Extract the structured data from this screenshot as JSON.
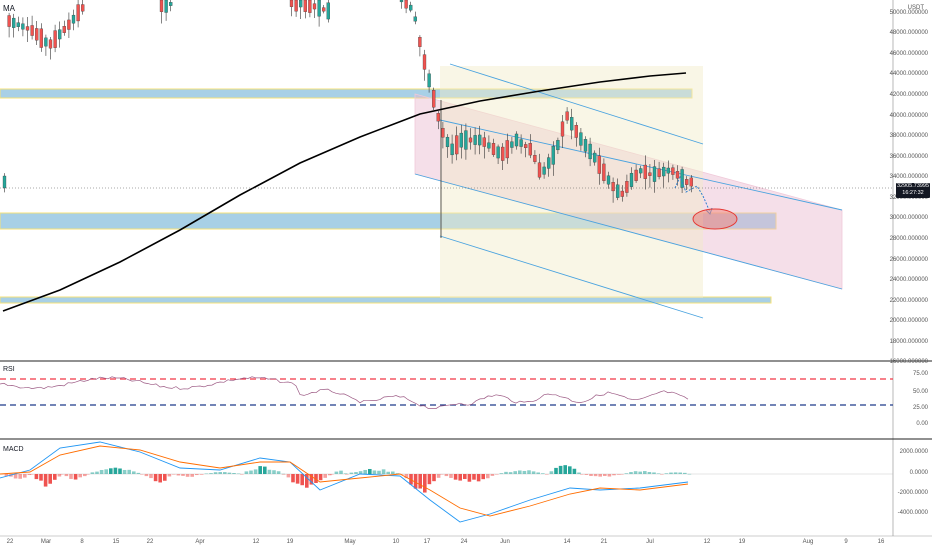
{
  "header": {
    "indicator_label": "MA",
    "unit": "USDT"
  },
  "price_scale": [
    "50000.000000",
    "48000.000000",
    "46000.000000",
    "44000.000000",
    "42000.000000",
    "40000.000000",
    "38000.000000",
    "36000.000000",
    "34000.000000",
    "32000.000000",
    "30000.000000",
    "28000.000000",
    "26000.000000",
    "24000.000000",
    "22000.000000",
    "20000.000000",
    "18000.000000",
    "16000.000000"
  ],
  "last_price": {
    "value": "32905.73995",
    "countdown": "16:27:32"
  },
  "rsi": {
    "title": "RSI",
    "scale": [
      "75.00",
      "50.00",
      "25.00",
      "0.00"
    ],
    "upper_level": 70,
    "lower_level": 30
  },
  "macd": {
    "title": "MACD",
    "scale": [
      "2000.0000",
      "0.0000",
      "-2000.0000",
      "-4000.0000"
    ]
  },
  "time_axis": [
    "22",
    "Mar",
    "8",
    "15",
    "22",
    "Apr",
    "12",
    "19",
    "May",
    "10",
    "17",
    "24",
    "Jun",
    "14",
    "21",
    "Jul",
    "12",
    "19",
    "Aug",
    "9",
    "16"
  ],
  "colors": {
    "up": "#26a69a",
    "down": "#ef5350",
    "ma": "#000000",
    "zone_fill": "#a8d0e6",
    "zone_border": "#f5e27a",
    "channel": "#4aa3df",
    "rsi_line": "#9c5a84",
    "rsi_upper": "#f23645",
    "rsi_lower": "#1e3a8a"
  }
}
